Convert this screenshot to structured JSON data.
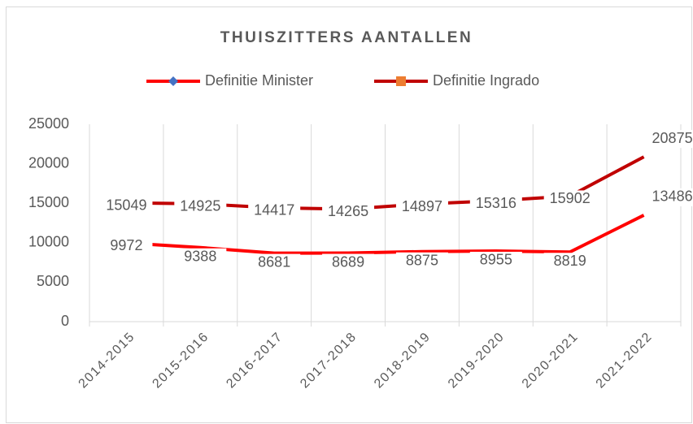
{
  "chart_data": {
    "type": "line",
    "title": "THUISZITTERS AANTALLEN",
    "categories": [
      "2014-2015",
      "2015-2016",
      "2016-2017",
      "2017-2018",
      "2018-2019",
      "2019-2020",
      "2020-2021",
      "2021-2022"
    ],
    "series": [
      {
        "name": "Definitie Minister",
        "color": "#ff0000",
        "values": [
          9972,
          9388,
          8681,
          8689,
          8875,
          8955,
          8819,
          13486
        ]
      },
      {
        "name": "Definitie Ingrado",
        "color": "#c00000",
        "values": [
          15049,
          14925,
          14417,
          14265,
          14897,
          15316,
          15902,
          20875
        ]
      }
    ],
    "ylim": [
      0,
      25000
    ],
    "yticks": [
      0,
      5000,
      10000,
      15000,
      20000,
      25000
    ],
    "legend": "top"
  }
}
